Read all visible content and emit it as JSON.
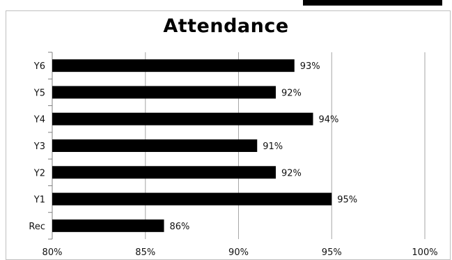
{
  "chart_data": {
    "type": "bar",
    "orientation": "horizontal",
    "title": "Attendance",
    "xlabel": "",
    "ylabel": "",
    "categories": [
      "Y6",
      "Y5",
      "Y4",
      "Y3",
      "Y2",
      "Y1",
      "Rec"
    ],
    "values": [
      93,
      92,
      94,
      91,
      92,
      95,
      86
    ],
    "data_labels": [
      "93%",
      "92%",
      "94%",
      "91%",
      "92%",
      "95%",
      "86%"
    ],
    "xlim": [
      80,
      100
    ],
    "x_ticks": [
      80,
      85,
      90,
      95,
      100
    ],
    "x_tick_labels": [
      "80%",
      "85%",
      "90%",
      "95%",
      "100%"
    ],
    "grid": "vertical",
    "legend": "none",
    "bar_color": "#000000",
    "gridline_color": "#a6a6a6"
  }
}
